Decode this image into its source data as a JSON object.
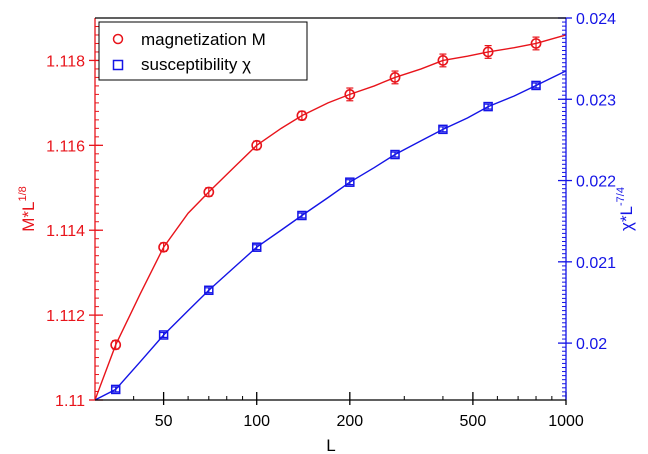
{
  "chart_data": {
    "type": "scatter",
    "xlabel": "L",
    "x_scale": "log",
    "xlim": [
      30,
      1000
    ],
    "x_ticks": [
      50,
      100,
      200,
      500,
      1000
    ],
    "x_tick_labels": [
      "50",
      "100",
      "200",
      "500",
      "1000"
    ],
    "left_axis": {
      "label_main": "M*L",
      "label_sup": "1/8",
      "ylim": [
        1.11,
        1.119
      ],
      "ticks": [
        1.11,
        1.112,
        1.114,
        1.116,
        1.118
      ],
      "tick_labels": [
        "1.11",
        "1.112",
        "1.114",
        "1.116",
        "1.118"
      ],
      "color": "#e8141b"
    },
    "right_axis": {
      "label_main": "χ*L",
      "label_sup": "-7/4",
      "ylim": [
        0.0193,
        0.024
      ],
      "ticks": [
        0.02,
        0.021,
        0.022,
        0.023,
        0.024
      ],
      "tick_labels": [
        "0.02",
        "0.021",
        "0.022",
        "0.023",
        "0.024"
      ],
      "color": "#1414e6"
    },
    "legend_position": "top-left",
    "grid": false,
    "series": [
      {
        "name": "magnetization M",
        "axis": "left",
        "marker": "circle",
        "color": "#e8141b",
        "x": [
          35,
          50,
          70,
          100,
          140,
          200,
          280,
          400,
          560,
          800
        ],
        "y": [
          1.1113,
          1.1136,
          1.1149,
          1.116,
          1.1167,
          1.1172,
          1.1176,
          1.118,
          1.1182,
          1.1184
        ],
        "err": [
          0.0001,
          0.0001,
          0.0001,
          0.0001,
          0.0001,
          0.00015,
          0.00015,
          0.00015,
          0.00015,
          0.00015
        ],
        "fit_x": [
          30,
          35,
          42,
          50,
          60,
          70,
          85,
          100,
          120,
          140,
          170,
          200,
          240,
          280,
          340,
          400,
          480,
          560,
          680,
          800,
          1000
        ],
        "fit_y": [
          1.11,
          1.1113,
          1.1125,
          1.1136,
          1.1144,
          1.1149,
          1.1155,
          1.116,
          1.1164,
          1.1167,
          1.117,
          1.1172,
          1.1174,
          1.1176,
          1.1178,
          1.118,
          1.1181,
          1.1182,
          1.1183,
          1.1184,
          1.1186
        ]
      },
      {
        "name": "susceptibility χ",
        "axis": "right",
        "marker": "square",
        "color": "#1414e6",
        "x": [
          35,
          50,
          70,
          100,
          140,
          200,
          280,
          400,
          560,
          800
        ],
        "y": [
          0.01943,
          0.0201,
          0.02065,
          0.02118,
          0.02157,
          0.02198,
          0.02232,
          0.02263,
          0.02291,
          0.02317
        ],
        "err": [
          3e-05,
          3e-05,
          3e-05,
          3e-05,
          3e-05,
          3e-05,
          3e-05,
          3e-05,
          3e-05,
          3e-05
        ],
        "fit_x": [
          30,
          35,
          42,
          50,
          60,
          70,
          85,
          100,
          120,
          140,
          170,
          200,
          240,
          280,
          340,
          400,
          480,
          560,
          680,
          800,
          1000
        ],
        "fit_y": [
          0.0193,
          0.01943,
          0.01977,
          0.0201,
          0.0204,
          0.02065,
          0.02094,
          0.02118,
          0.02139,
          0.02157,
          0.02179,
          0.02198,
          0.02216,
          0.02232,
          0.02249,
          0.02263,
          0.02277,
          0.02291,
          0.02304,
          0.02317,
          0.02335
        ]
      }
    ]
  }
}
